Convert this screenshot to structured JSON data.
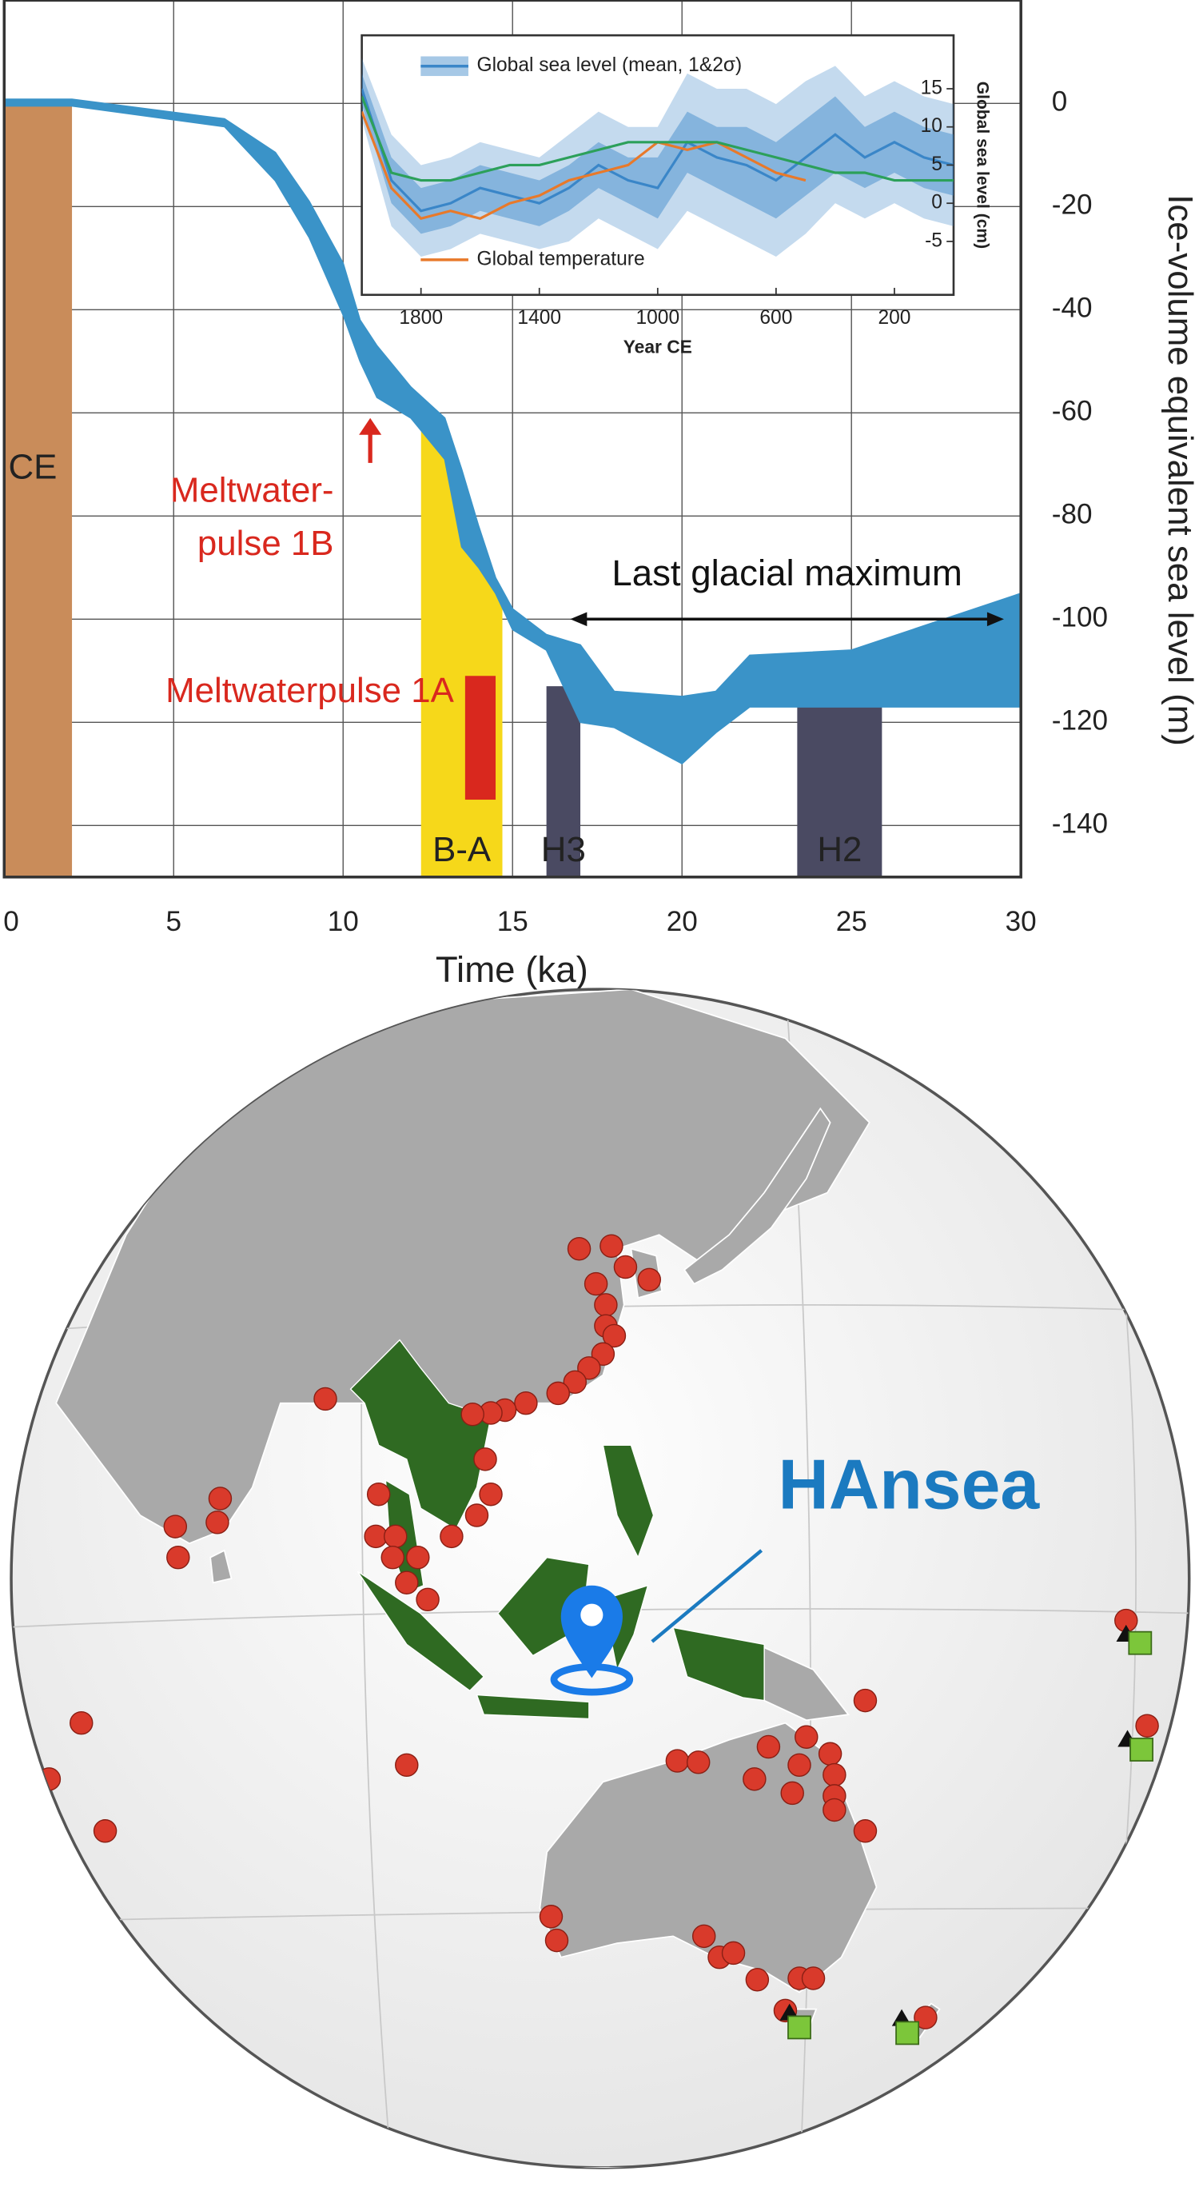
{
  "chart_data": [
    {
      "type": "area",
      "x_label": "Time (ka)",
      "y_label": "Ice-volume equivalent sea level (m)",
      "xlim": [
        0,
        30
      ],
      "ylim": [
        -150,
        20
      ],
      "xticks": [
        0,
        5,
        10,
        15,
        20,
        25,
        30
      ],
      "yticks": [
        0,
        -20,
        -40,
        -60,
        -80,
        -100,
        -120,
        -140
      ],
      "grid": true,
      "band": {
        "color": "#3a93c8",
        "x": [
          0,
          2,
          6.5,
          8,
          9,
          10,
          10.5,
          11,
          12,
          13,
          13.5,
          14,
          14.5,
          15,
          16,
          17,
          18,
          20,
          21,
          22,
          25,
          30
        ],
        "upper": [
          0.8,
          0.8,
          -3,
          -9.5,
          -19,
          -31,
          -42,
          -47,
          -55,
          -61,
          -71,
          -82,
          -92,
          -98,
          -103,
          -105,
          -114,
          -115,
          -114,
          -107,
          -106,
          -95
        ],
        "lower": [
          -0.5,
          -0.5,
          -4.5,
          -15,
          -26,
          -41,
          -50,
          -57,
          -61,
          -69,
          -86,
          -90,
          -95,
          -102,
          -106,
          -120,
          -121,
          -128,
          -122,
          -117,
          -117,
          -117
        ]
      },
      "spans": [
        {
          "label": "CE",
          "x": [
            0,
            2
          ],
          "y": [
            -150,
            0
          ],
          "color": "#c98c5a"
        },
        {
          "label": "B-A",
          "x": [
            12.3,
            14.7
          ],
          "y": [
            -150,
            -60
          ],
          "color": "#f6d81a"
        },
        {
          "label": "H3",
          "x": [
            16,
            17
          ],
          "y": [
            -150,
            -113
          ],
          "color": "#4a4a62"
        },
        {
          "label": "H2",
          "x": [
            23.4,
            25.9
          ],
          "y": [
            -150,
            -113
          ],
          "color": "#4a4a62"
        }
      ],
      "pulse": {
        "label": "Meltwaterpulse 1A",
        "x": [
          13.6,
          14.5
        ],
        "y": [
          -135,
          -111
        ],
        "color": "#d9281e"
      },
      "arrow_note": {
        "lines": [
          "Meltwater-",
          "pulse 1B"
        ],
        "x": 10.8,
        "y": -61,
        "color": "#d9281e"
      },
      "range_note": {
        "label": "Last glacial maximum",
        "x": [
          16.7,
          29.5
        ],
        "y": -100
      }
    },
    {
      "type": "line",
      "x_label": "Year CE",
      "y_label": "Global sea level (cm)",
      "xlim": [
        2000,
        0
      ],
      "ylim": [
        -12,
        22
      ],
      "xticks": [
        1800,
        1400,
        1000,
        600,
        200
      ],
      "yticks": [
        -5,
        0,
        5,
        10,
        15
      ],
      "x": [
        2000,
        1900,
        1800,
        1700,
        1600,
        1500,
        1400,
        1300,
        1200,
        1100,
        1000,
        900,
        800,
        700,
        600,
        500,
        400,
        300,
        200,
        100,
        0
      ],
      "series": [
        {
          "name": "Global sea level (mean, 1&2σ)",
          "color": "#3a86c8",
          "values": [
            15,
            3,
            -1,
            0,
            2,
            1,
            0,
            2,
            5,
            3,
            2,
            8,
            6,
            5,
            3,
            6,
            9,
            6,
            8,
            6,
            5
          ],
          "sigma1": [
            2,
            3,
            3,
            3,
            3,
            3,
            3,
            3,
            3,
            3,
            4,
            4,
            4,
            5,
            5,
            5,
            5,
            4,
            4,
            4,
            4
          ],
          "sigma2": [
            4,
            6,
            6,
            6,
            6,
            6,
            6,
            7,
            7,
            7,
            8,
            9,
            9,
            10,
            10,
            10,
            9,
            8,
            8,
            8,
            8
          ]
        },
        {
          "name": "Global temperature",
          "color": "#e8792a",
          "values": [
            12,
            2,
            -2,
            -1,
            -2,
            0,
            1,
            3,
            4,
            5,
            8,
            7,
            8,
            6,
            4,
            3,
            null,
            null,
            null,
            null,
            null
          ]
        },
        {
          "color": "#2ca05a",
          "values": [
            14,
            4,
            3,
            3,
            4,
            5,
            5,
            6,
            7,
            8,
            8,
            8,
            8,
            7,
            6,
            5,
            4,
            4,
            3,
            3,
            3
          ]
        }
      ]
    }
  ],
  "map": {
    "label": "HAnsea"
  }
}
